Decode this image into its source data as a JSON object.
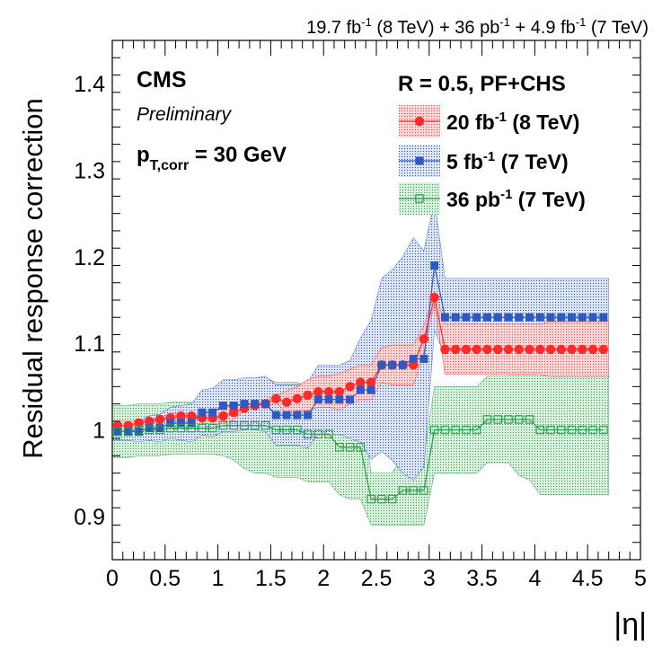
{
  "header": {
    "lumi_a": "19.7 fb",
    "lumi_a_sup": "-1",
    "lumi_a_rest": " (8 TeV) + 36 pb",
    "lumi_b_sup": "-1",
    "lumi_b_rest": " + 4.9 fb",
    "lumi_c_sup": "-1",
    "lumi_c_rest": " (7 TeV)"
  },
  "labels": {
    "cms": "CMS",
    "preliminary": "Preliminary",
    "pt_main": "p",
    "pt_sub": "T,corr",
    "pt_rest": " = 30 GeV",
    "jet_def": "R = 0.5, PF+CHS"
  },
  "legend": [
    {
      "lumi": "20 fb",
      "sup": "-1",
      "energy": " (8 TeV)",
      "color": "#ff2a2a",
      "marker": "circle"
    },
    {
      "lumi": "5 fb",
      "sup": "-1",
      "energy": " (7 TeV)",
      "color": "#2e58c4",
      "marker": "square"
    },
    {
      "lumi": "36 pb",
      "sup": "-1",
      "energy": " (7 TeV)",
      "color": "#2a9d4a",
      "marker": "open-square"
    }
  ],
  "chart_data": {
    "type": "scatter",
    "xlabel": "|η|",
    "ylabel": "Residual response correction",
    "xlim": [
      0,
      5
    ],
    "ylim": [
      0.85,
      1.45
    ],
    "xticks": [
      "0",
      "0.5",
      "1",
      "1.5",
      "2",
      "2.5",
      "3",
      "3.5",
      "4",
      "4.5",
      "5"
    ],
    "yticks": [
      "0.9",
      "1",
      "1.1",
      "1.2",
      "1.3",
      "1.4"
    ],
    "series": [
      {
        "name": "20 fb-1 (8 TeV)",
        "color": "#ff2a2a",
        "x": [
          0.05,
          0.15,
          0.25,
          0.35,
          0.45,
          0.55,
          0.65,
          0.75,
          0.85,
          0.95,
          1.05,
          1.15,
          1.25,
          1.35,
          1.45,
          1.55,
          1.65,
          1.75,
          1.85,
          1.95,
          2.05,
          2.15,
          2.25,
          2.35,
          2.45,
          2.55,
          2.65,
          2.75,
          2.85,
          2.95,
          3.05,
          3.15,
          3.25,
          3.35,
          3.45,
          3.55,
          3.65,
          3.75,
          3.85,
          3.95,
          4.05,
          4.15,
          4.25,
          4.35,
          4.45,
          4.55,
          4.65
        ],
        "y": [
          1.005,
          1.005,
          1.008,
          1.01,
          1.012,
          1.014,
          1.016,
          1.016,
          1.014,
          1.014,
          1.016,
          1.02,
          1.025,
          1.028,
          1.03,
          1.036,
          1.032,
          1.036,
          1.04,
          1.044,
          1.044,
          1.044,
          1.05,
          1.055,
          1.055,
          1.075,
          1.075,
          1.075,
          1.075,
          1.105,
          1.153,
          1.093,
          1.093,
          1.093,
          1.093,
          1.093,
          1.093,
          1.093,
          1.093,
          1.093,
          1.093,
          1.093,
          1.093,
          1.093,
          1.093,
          1.093,
          1.093
        ],
        "band": [
          1.0,
          1.0,
          1.005,
          1.008,
          1.01,
          1.01,
          1.012,
          1.015,
          1.02,
          1.022,
          1.025,
          1.028,
          1.028,
          1.03,
          1.035,
          1.04,
          1.045,
          1.05,
          1.058,
          1.062,
          1.062,
          1.065,
          1.07,
          1.075,
          1.075,
          1.095,
          1.098,
          1.098,
          1.098,
          1.12,
          1.16,
          1.122,
          1.122,
          1.122,
          1.122,
          1.122,
          1.122,
          1.122,
          1.122,
          1.122,
          1.122,
          1.125,
          1.125,
          1.125,
          1.125,
          1.125,
          1.125
        ]
      },
      {
        "name": "5 fb-1 (7 TeV)",
        "color": "#2e58c4",
        "x": [
          0.05,
          0.15,
          0.25,
          0.35,
          0.45,
          0.55,
          0.65,
          0.75,
          0.85,
          0.95,
          1.05,
          1.15,
          1.25,
          1.35,
          1.45,
          1.55,
          1.65,
          1.75,
          1.85,
          1.95,
          2.05,
          2.15,
          2.25,
          2.35,
          2.45,
          2.55,
          2.65,
          2.75,
          2.85,
          2.95,
          3.05,
          3.15,
          3.25,
          3.35,
          3.45,
          3.55,
          3.65,
          3.75,
          3.85,
          3.95,
          4.05,
          4.15,
          4.25,
          4.35,
          4.45,
          4.55,
          4.65
        ],
        "y": [
          0.998,
          0.998,
          0.998,
          1.002,
          1.002,
          1.008,
          1.008,
          1.008,
          1.02,
          1.02,
          1.028,
          1.028,
          1.03,
          1.03,
          1.03,
          1.017,
          1.017,
          1.017,
          1.017,
          1.035,
          1.035,
          1.035,
          1.035,
          1.046,
          1.046,
          1.075,
          1.075,
          1.075,
          1.082,
          1.082,
          1.19,
          1.13,
          1.13,
          1.13,
          1.13,
          1.13,
          1.13,
          1.13,
          1.13,
          1.13,
          1.13,
          1.13,
          1.13,
          1.13,
          1.13,
          1.13,
          1.13
        ],
        "band": [
          0.01,
          0.01,
          0.012,
          0.014,
          0.016,
          0.018,
          0.02,
          0.022,
          0.026,
          0.028,
          0.03,
          0.03,
          0.03,
          0.03,
          0.032,
          0.035,
          0.035,
          0.035,
          0.038,
          0.04,
          0.04,
          0.04,
          0.045,
          0.06,
          0.08,
          0.1,
          0.11,
          0.125,
          0.14,
          0.125,
          0.075,
          0.045,
          0.045,
          0.045,
          0.045,
          0.045,
          0.045,
          0.045,
          0.045,
          0.045,
          0.045,
          0.045,
          0.045,
          0.045,
          0.045,
          0.045,
          0.045
        ]
      },
      {
        "name": "36 pb-1 (7 TeV)",
        "color": "#2a9d4a",
        "x": [
          0.05,
          0.15,
          0.25,
          0.35,
          0.45,
          0.55,
          0.65,
          0.75,
          0.85,
          0.95,
          1.05,
          1.15,
          1.25,
          1.35,
          1.45,
          1.55,
          1.65,
          1.75,
          1.85,
          1.95,
          2.05,
          2.15,
          2.25,
          2.35,
          2.45,
          2.55,
          2.65,
          2.75,
          2.85,
          2.95,
          3.05,
          3.15,
          3.25,
          3.35,
          3.45,
          3.55,
          3.65,
          3.75,
          3.85,
          3.95,
          4.05,
          4.15,
          4.25,
          4.35,
          4.45,
          4.55,
          4.65
        ],
        "y": [
          0.998,
          0.998,
          1.0,
          1.0,
          1.0,
          1.002,
          1.002,
          1.002,
          1.002,
          1.002,
          1.005,
          1.005,
          1.005,
          1.005,
          1.005,
          1.0,
          1.0,
          1.0,
          0.995,
          0.995,
          0.995,
          0.98,
          0.98,
          0.98,
          0.92,
          0.92,
          0.92,
          0.93,
          0.93,
          0.93,
          1.0,
          1.0,
          1.0,
          1.0,
          1.0,
          1.012,
          1.012,
          1.012,
          1.012,
          1.012,
          1.0,
          1.0,
          1.0,
          1.0,
          1.0,
          1.0,
          1.0
        ],
        "band": [
          0.03,
          0.03,
          0.03,
          0.03,
          0.03,
          0.03,
          0.03,
          0.03,
          0.03,
          0.03,
          0.035,
          0.04,
          0.05,
          0.055,
          0.055,
          0.055,
          0.055,
          0.055,
          0.055,
          0.055,
          0.055,
          0.055,
          0.06,
          0.06,
          0.03,
          0.03,
          0.03,
          0.04,
          0.04,
          0.04,
          0.05,
          0.05,
          0.05,
          0.05,
          0.05,
          0.05,
          0.05,
          0.05,
          0.065,
          0.07,
          0.075,
          0.075,
          0.075,
          0.075,
          0.075,
          0.075,
          0.075
        ]
      }
    ]
  }
}
